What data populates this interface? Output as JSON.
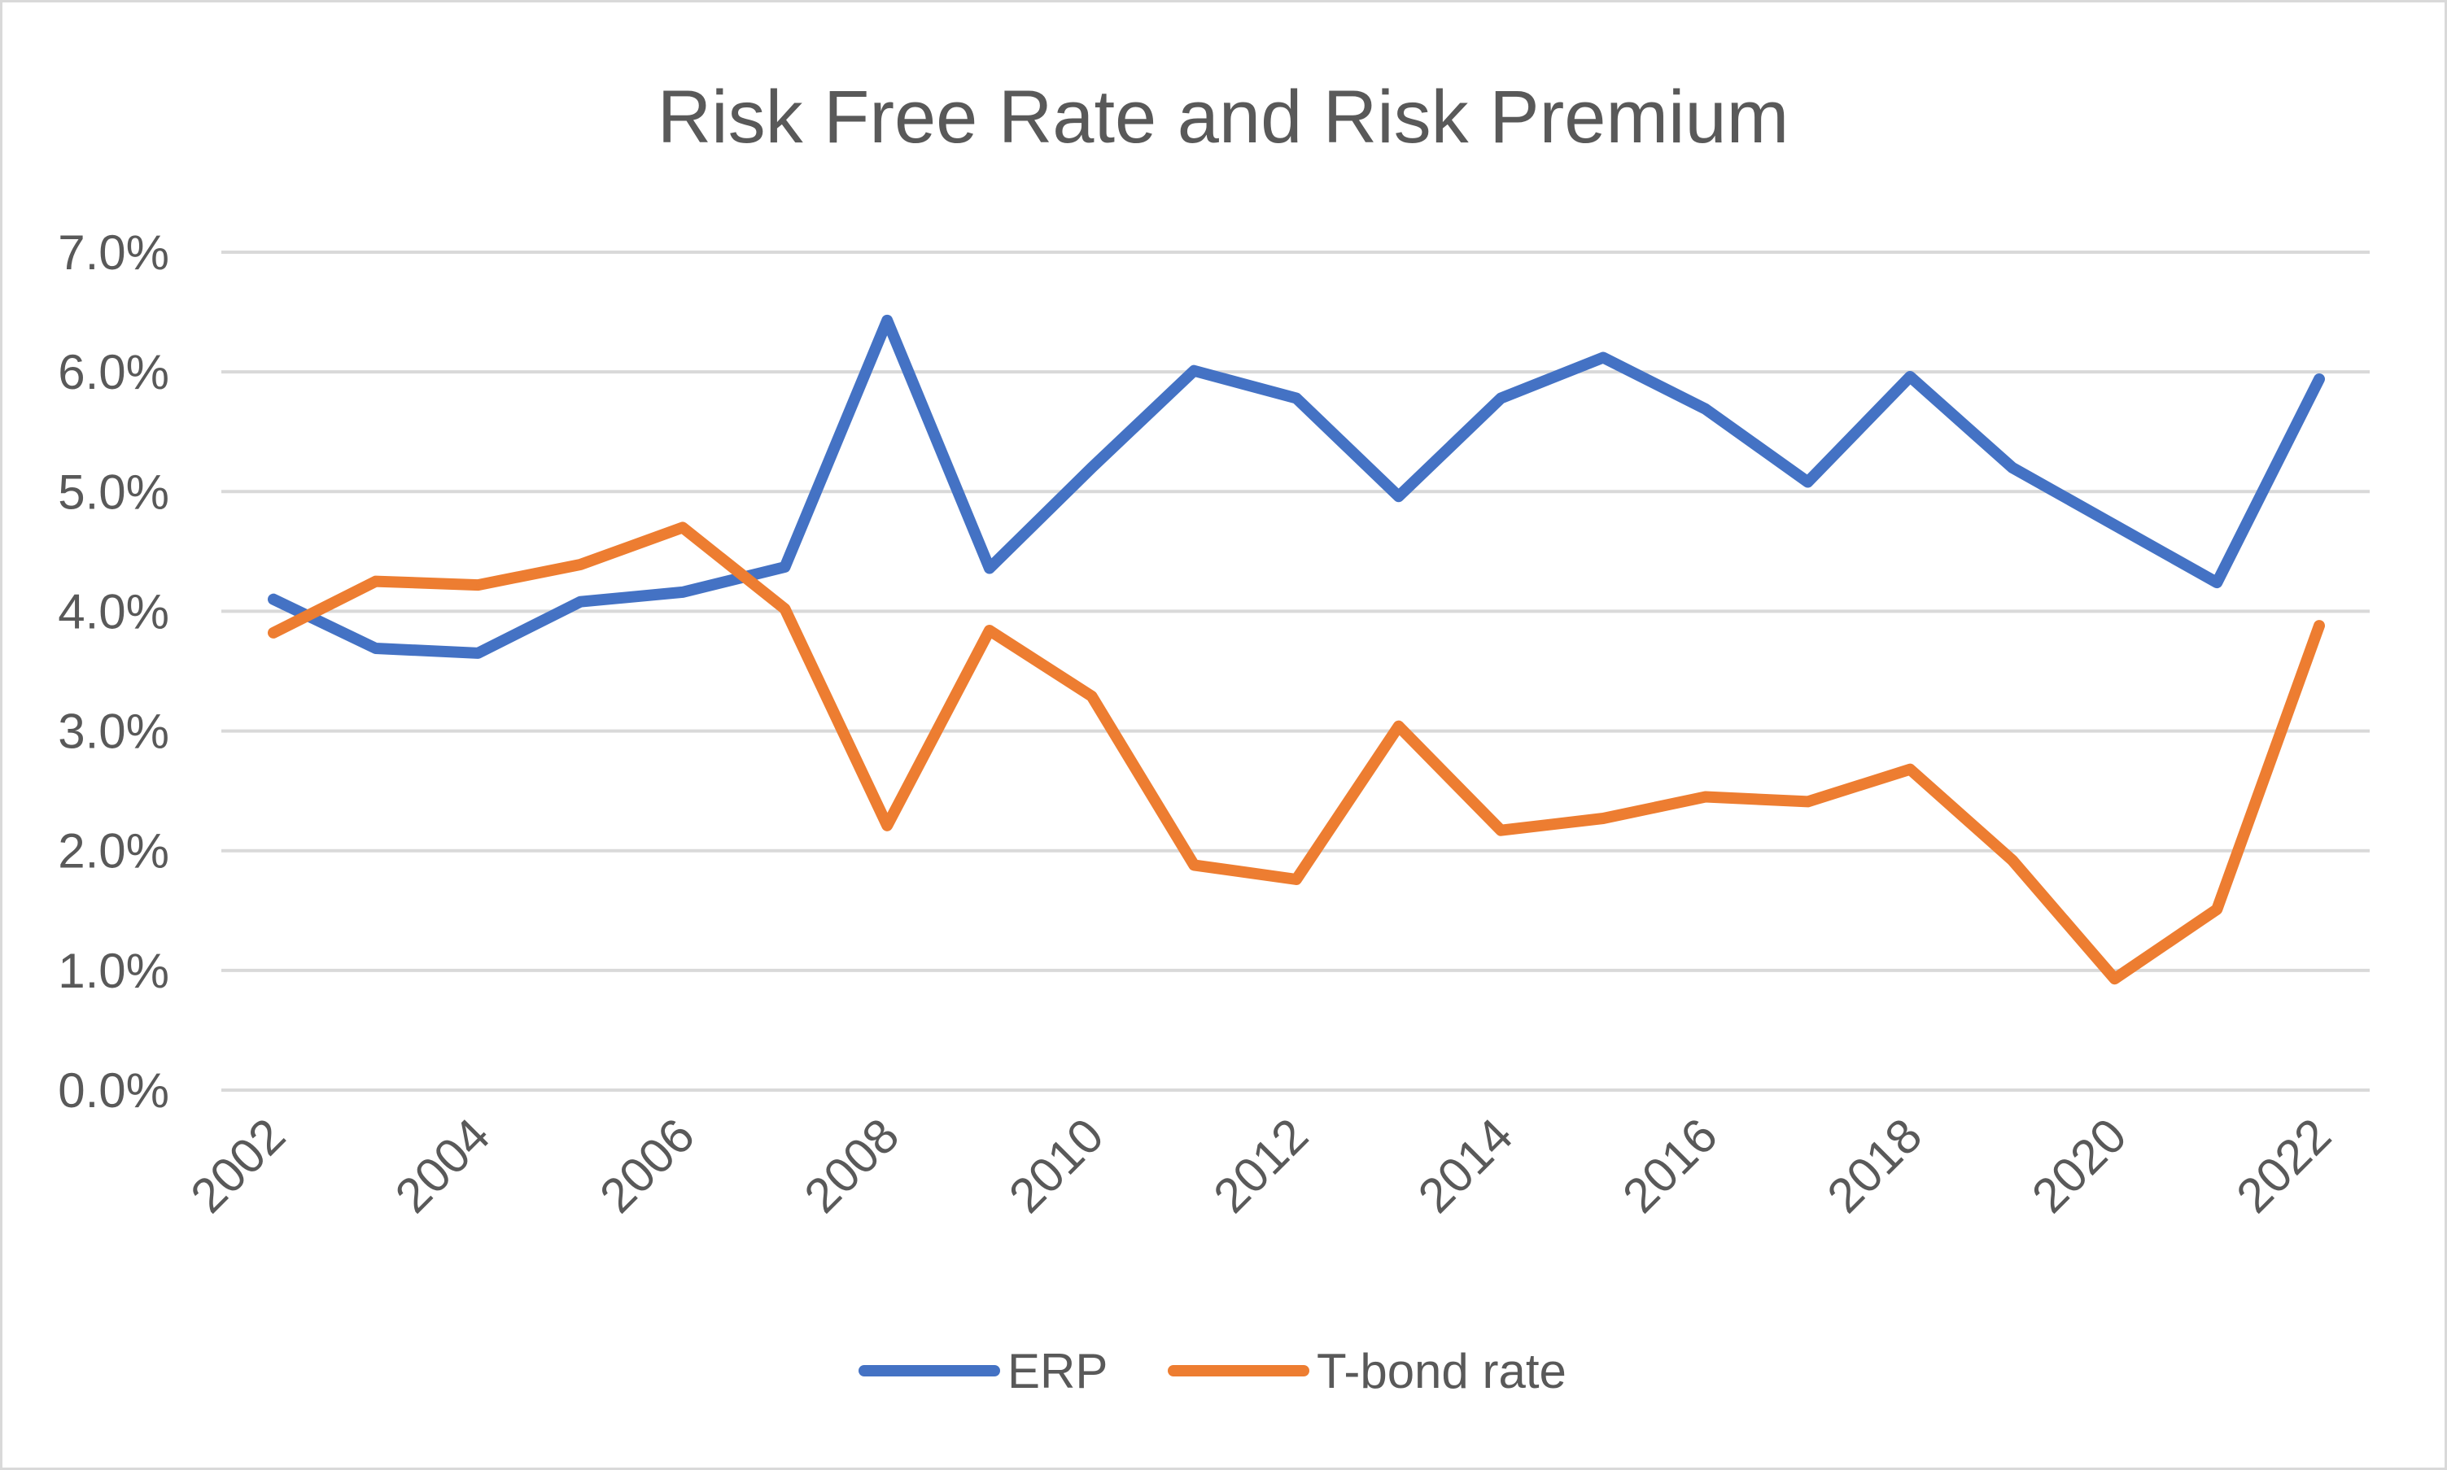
{
  "chart_data": {
    "type": "line",
    "title": "Risk Free Rate and Risk Premium",
    "xlabel": "",
    "ylabel": "",
    "x": [
      2002,
      2003,
      2004,
      2005,
      2006,
      2007,
      2008,
      2009,
      2010,
      2011,
      2012,
      2013,
      2014,
      2015,
      2016,
      2017,
      2018,
      2019,
      2020,
      2021,
      2022
    ],
    "x_tick_labels": [
      "2002",
      "2004",
      "2006",
      "2008",
      "2010",
      "2012",
      "2014",
      "2016",
      "2018",
      "2020",
      "2022"
    ],
    "x_tick_values": [
      2002,
      2004,
      2006,
      2008,
      2010,
      2012,
      2014,
      2016,
      2018,
      2020,
      2022
    ],
    "y_tick_labels": [
      "0.0%",
      "1.0%",
      "2.0%",
      "3.0%",
      "4.0%",
      "5.0%",
      "6.0%",
      "7.0%"
    ],
    "y_tick_values": [
      0,
      1,
      2,
      3,
      4,
      5,
      6,
      7
    ],
    "ylim": [
      0,
      7
    ],
    "y_unit": "%",
    "grid": true,
    "legend_position": "bottom",
    "series": [
      {
        "name": "ERP",
        "color": "#4472c4",
        "values": [
          4.1,
          3.69,
          3.65,
          4.08,
          4.16,
          4.37,
          6.43,
          4.36,
          5.2,
          6.01,
          5.78,
          4.96,
          5.78,
          6.12,
          5.69,
          5.08,
          5.96,
          5.2,
          4.72,
          4.24,
          5.94
        ]
      },
      {
        "name": "T-bond rate",
        "color": "#ed7d31",
        "values": [
          3.82,
          4.25,
          4.22,
          4.39,
          4.7,
          4.02,
          2.21,
          3.84,
          3.29,
          1.88,
          1.76,
          3.04,
          2.17,
          2.27,
          2.45,
          2.41,
          2.68,
          1.92,
          0.93,
          1.51,
          3.88
        ]
      }
    ]
  }
}
